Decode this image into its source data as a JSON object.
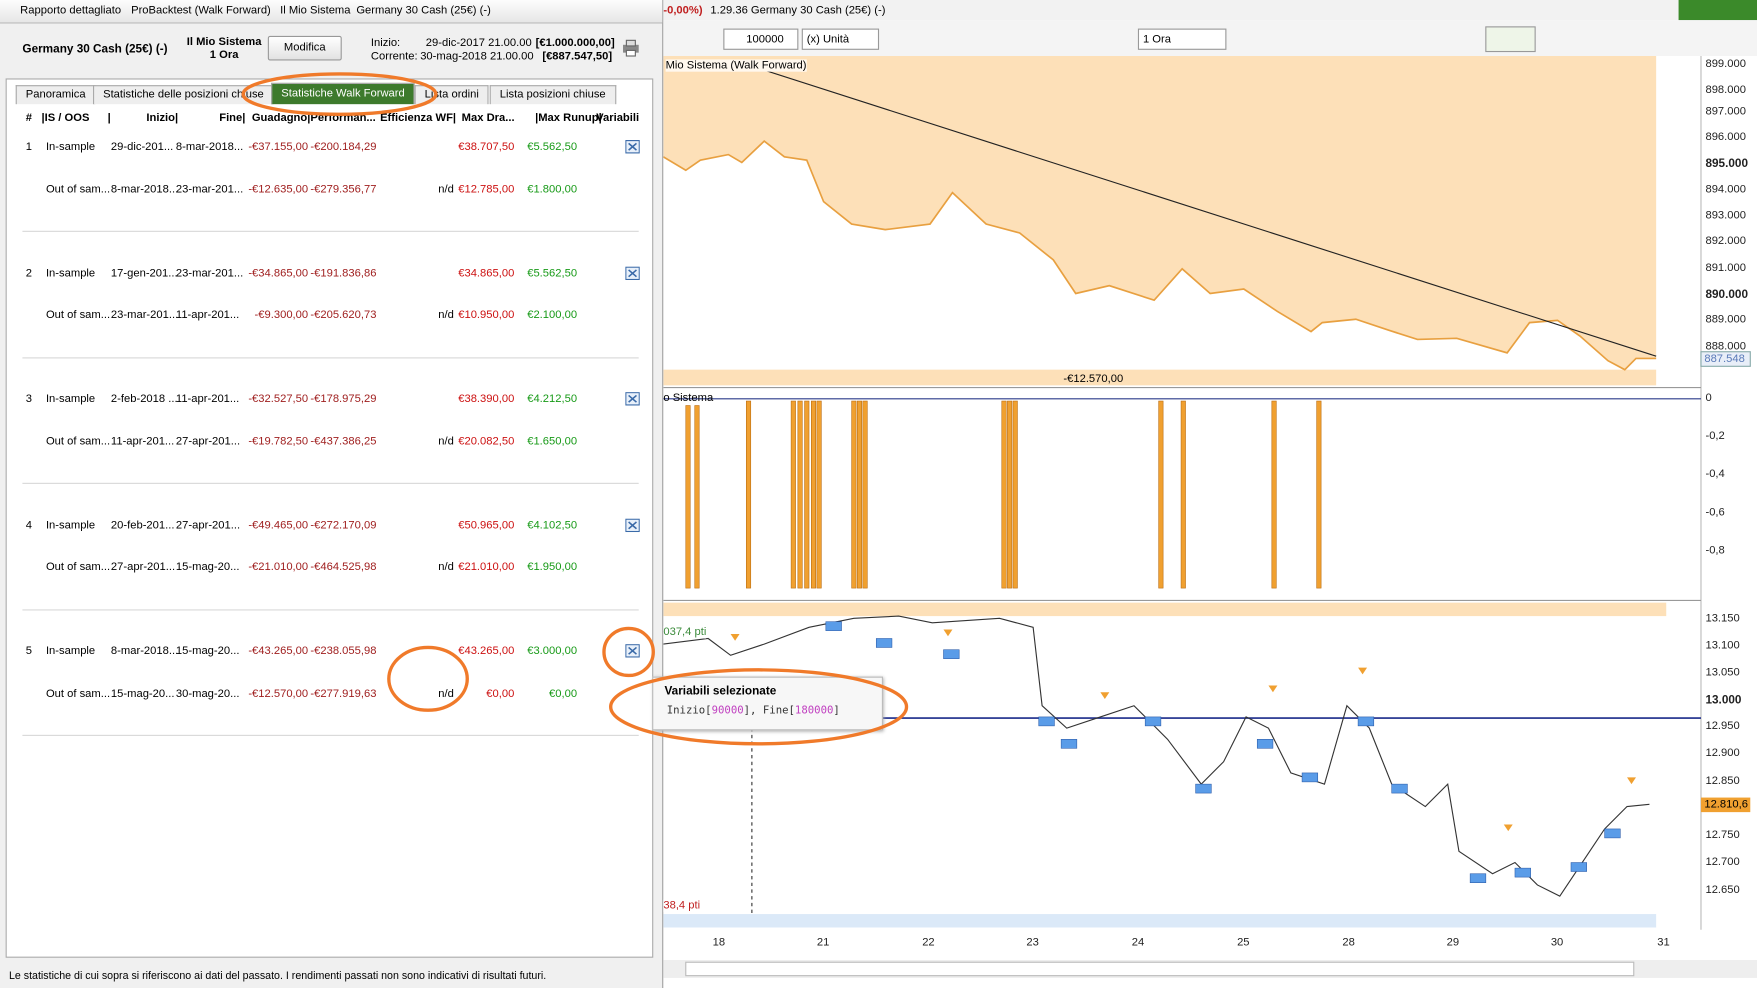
{
  "left_window": {
    "title_tabs": [
      "Rapporto dettagliato",
      "ProBacktest (Walk Forward)",
      "Il Mio Sistema",
      "Germany 30 Cash (25€) (-)"
    ],
    "header": {
      "instrument": "Germany 30 Cash (25€) (-)",
      "system": "Il Mio Sistema",
      "timeframe": "1 Ora",
      "button": "Modifica",
      "start_label": "Inizio:",
      "start_date": "29-dic-2017 21.00.00",
      "start_value": "[€1.000.000,00]",
      "current_label": "Corrente:",
      "current_date": "30-mag-2018 21.00.00",
      "current_value": "[€887.547,50]"
    },
    "tabs": [
      "Panoramica",
      "Statistiche delle posizioni chiuse",
      "Statistiche Walk Forward",
      "Lista ordini",
      "Lista posizioni chiuse"
    ],
    "active_tab": 2,
    "columns": [
      "#",
      "|IS / OOS",
      "|",
      "Inizio|",
      "Fine|",
      "Guadagno|",
      "Performan...",
      "Efficienza WF|",
      "Max Dra...",
      "|Max Runup|",
      "Variabili"
    ],
    "groups": [
      {
        "n": "1",
        "in_sample": {
          "type": "In-sample",
          "start": "29-dic-201...",
          "end": "8-mar-2018...",
          "gain": "-€37.155,00",
          "perf": "-€200.184,29",
          "dd": "€38.707,50",
          "runup": "€5.562,50"
        },
        "out_of_sample": {
          "type": "Out of sam...",
          "start": "8-mar-2018...",
          "end": "23-mar-201...",
          "gain": "-€12.635,00",
          "perf": "-€279.356,77",
          "eff": "n/d",
          "dd": "€12.785,00",
          "runup": "€1.800,00"
        }
      },
      {
        "n": "2",
        "in_sample": {
          "type": "In-sample",
          "start": "17-gen-201...",
          "end": "23-mar-201...",
          "gain": "-€34.865,00",
          "perf": "-€191.836,86",
          "dd": "€34.865,00",
          "runup": "€5.562,50"
        },
        "out_of_sample": {
          "type": "Out of sam...",
          "start": "23-mar-201...",
          "end": "11-apr-201...",
          "gain": "-€9.300,00",
          "perf": "-€205.620,73",
          "eff": "n/d",
          "dd": "€10.950,00",
          "runup": "€2.100,00"
        }
      },
      {
        "n": "3",
        "in_sample": {
          "type": "In-sample",
          "start": "2-feb-2018 ...",
          "end": "11-apr-201...",
          "gain": "-€32.527,50",
          "perf": "-€178.975,29",
          "dd": "€38.390,00",
          "runup": "€4.212,50"
        },
        "out_of_sample": {
          "type": "Out of sam...",
          "start": "11-apr-201...",
          "end": "27-apr-201...",
          "gain": "-€19.782,50",
          "perf": "-€437.386,25",
          "eff": "n/d",
          "dd": "€20.082,50",
          "runup": "€1.650,00"
        }
      },
      {
        "n": "4",
        "in_sample": {
          "type": "In-sample",
          "start": "20-feb-201...",
          "end": "27-apr-201...",
          "gain": "-€49.465,00",
          "perf": "-€272.170,09",
          "dd": "€50.965,00",
          "runup": "€4.102,50"
        },
        "out_of_sample": {
          "type": "Out of sam...",
          "start": "27-apr-201...",
          "end": "15-mag-20...",
          "gain": "-€21.010,00",
          "perf": "-€464.525,98",
          "eff": "n/d",
          "dd": "€21.010,00",
          "runup": "€1.950,00"
        }
      },
      {
        "n": "5",
        "in_sample": {
          "type": "In-sample",
          "start": "8-mar-2018...",
          "end": "15-mag-20...",
          "gain": "-€43.265,00",
          "perf": "-€238.055,98",
          "dd": "€43.265,00",
          "runup": "€3.000,00"
        },
        "out_of_sample": {
          "type": "Out of sam...",
          "start": "15-mag-20...",
          "end": "30-mag-20...",
          "gain": "-€12.570,00",
          "perf": "-€277.919,63",
          "eff": "n/d",
          "dd": "€0,00",
          "runup": "€0,00"
        }
      }
    ],
    "footer": "Le statistiche di cui sopra si riferiscono ai dati del passato. I rendimenti passati non sono indicativi di risultati futuri."
  },
  "tooltip": {
    "title": "Variabili selezionate",
    "parts": [
      "Inizio[",
      "90000",
      "], Fine[",
      "180000",
      "]"
    ]
  },
  "chart_window": {
    "title_prefix": "-0,00%)",
    "title": "1.29.36 Germany 30 Cash (25€) (-)",
    "toolbar": {
      "quantity": "100000",
      "unit": "(x) Unità",
      "timeframe": "1 Ora"
    },
    "equity_panel": {
      "label": "Mio Sistema (Walk Forward)",
      "axis": [
        "899.000",
        "898.000",
        "897.000",
        "896.000",
        "895.000",
        "894.000",
        "893.000",
        "892.000",
        "891.000",
        "890.000",
        "889.000",
        "888.000"
      ],
      "current": "887.548",
      "result": "-€12.570,00"
    },
    "position_panel": {
      "label": "o Sistema",
      "axis": [
        "0",
        "-0,2",
        "-0,4",
        "-0,6",
        "-0,8"
      ]
    },
    "price_panel": {
      "axis": [
        "13.150",
        "13.100",
        "13.050",
        "13.000",
        "12.950",
        "12.900",
        "12.850",
        "12.750",
        "12.700",
        "12.650"
      ],
      "current": "12.810,6",
      "labels": [
        "037,4 pti",
        "38,4 pti"
      ]
    },
    "dates": [
      "18",
      "21",
      "22",
      "23",
      "24",
      "25",
      "28",
      "29",
      "30",
      "31"
    ]
  }
}
